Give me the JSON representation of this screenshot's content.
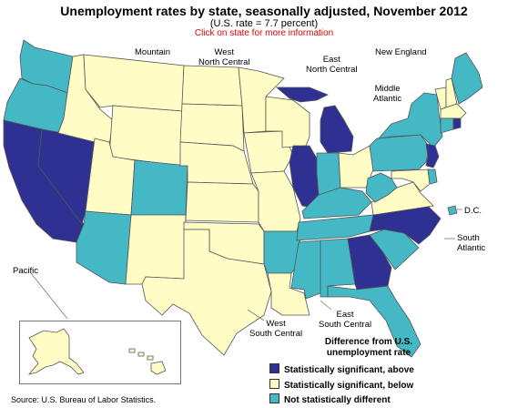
{
  "title": "Unemployment rates by state, seasonally adjusted, November 2012",
  "subtitle": "(U.S. rate = 7.7 percent)",
  "link_text": "Click on state for more information",
  "colors": {
    "above": "#2e3192",
    "below": "#fffdc5",
    "not_significant": "#44b8c4"
  },
  "regions": {
    "mountain": "Mountain",
    "west_north_central": [
      "West",
      "North Central"
    ],
    "east_north_central": [
      "East",
      "North Central"
    ],
    "new_england": "New England",
    "middle_atlantic": [
      "Middle",
      "Atlantic"
    ],
    "dc": "D.C.",
    "south_atlantic": [
      "South",
      "Atlantic"
    ],
    "pacific": "Pacific",
    "west_south_central": [
      "West",
      "South Central"
    ],
    "east_south_central": [
      "East",
      "South Central"
    ]
  },
  "legend": {
    "title": [
      "Difference from U.S.",
      "unemployment rate"
    ],
    "items": [
      {
        "label": "Statistically significant, above",
        "category": "above"
      },
      {
        "label": "Statistically significant, below",
        "category": "below"
      },
      {
        "label": "Not statistically different",
        "category": "not_significant"
      }
    ]
  },
  "source": "Source: U.S. Bureau of Labor Statistics.",
  "states": {
    "WA": "not_significant",
    "OR": "not_significant",
    "CA": "above",
    "NV": "above",
    "ID": "below",
    "MT": "below",
    "WY": "below",
    "UT": "below",
    "CO": "not_significant",
    "AZ": "not_significant",
    "NM": "below",
    "ND": "below",
    "SD": "below",
    "NE": "below",
    "KS": "below",
    "OK": "below",
    "TX": "below",
    "MN": "below",
    "IA": "below",
    "MO": "below",
    "AR": "not_significant",
    "LA": "below",
    "WI": "below",
    "IL": "above",
    "MI": "above",
    "IN": "not_significant",
    "OH": "below",
    "KY": "not_significant",
    "TN": "not_significant",
    "MS": "not_significant",
    "AL": "not_significant",
    "GA": "above",
    "FL": "not_significant",
    "SC": "not_significant",
    "NC": "above",
    "VA": "below",
    "WV": "not_significant",
    "MD": "below",
    "DE": "not_significant",
    "PA": "not_significant",
    "NY": "not_significant",
    "NJ": "above",
    "CT": "not_significant",
    "RI": "above",
    "MA": "below",
    "VT": "below",
    "NH": "below",
    "ME": "not_significant",
    "DC": "not_significant",
    "AK": "below",
    "HI": "below"
  }
}
